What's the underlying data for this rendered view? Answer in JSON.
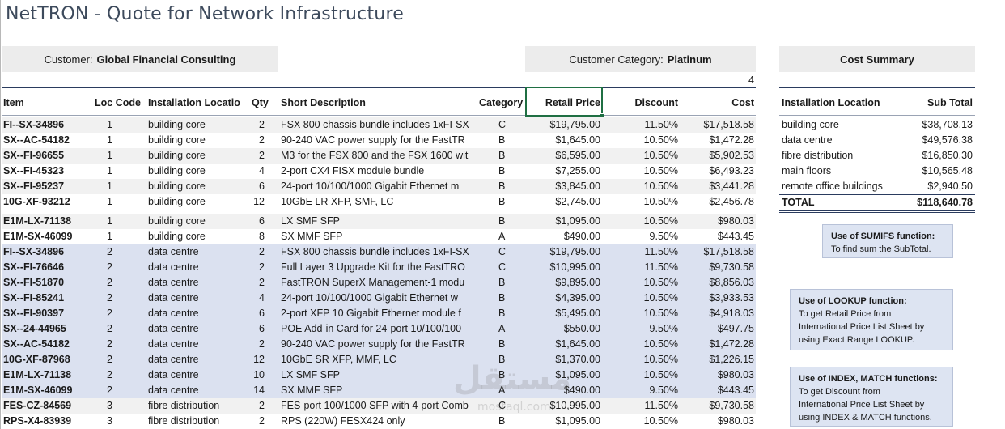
{
  "title": "NetTRON - Quote for Network Infrastructure",
  "customer_label": "Customer:",
  "customer_value": "Global Financial Consulting",
  "category_label": "Customer Category:",
  "category_value": "Platinum",
  "cost_summary_title": "Cost Summary",
  "category_index": "4",
  "headers": {
    "item": "Item",
    "loc": "Loc Code",
    "inst": "Installation Locatio",
    "qty": "Qty",
    "desc": "Short Description",
    "cat": "Category",
    "rp": "Retail Price",
    "disc": "Discount",
    "cost": "Cost"
  },
  "rows": [
    {
      "item": "FI--SX-34896",
      "loc": "1",
      "inst": "building core",
      "qty": "2",
      "desc": "FSX 800 chassis bundle includes 1xFI-SX",
      "cat": "C",
      "rp": "$19,795.00",
      "disc": "11.50%",
      "cost": "$17,518.58"
    },
    {
      "item": "SX--AC-54182",
      "loc": "1",
      "inst": "building core",
      "qty": "2",
      "desc": "90-240 VAC power supply for the FastTR",
      "cat": "B",
      "rp": "$1,645.00",
      "disc": "10.50%",
      "cost": "$1,472.28"
    },
    {
      "item": "SX--FI-96655",
      "loc": "1",
      "inst": "building core",
      "qty": "2",
      "desc": "M3 for the FSX 800 and the FSX 1600 wit",
      "cat": "B",
      "rp": "$6,595.00",
      "disc": "10.50%",
      "cost": "$5,902.53"
    },
    {
      "item": "SX--FI-45323",
      "loc": "1",
      "inst": "building core",
      "qty": "4",
      "desc": "2-port CX4 FISX module bundle",
      "cat": "B",
      "rp": "$7,255.00",
      "disc": "10.50%",
      "cost": "$6,493.23"
    },
    {
      "item": "SX--FI-95237",
      "loc": "1",
      "inst": "building core",
      "qty": "6",
      "desc": "24-port 10/100/1000 Gigabit Ethernet m",
      "cat": "B",
      "rp": "$3,845.00",
      "disc": "10.50%",
      "cost": "$3,441.28"
    },
    {
      "item": "10G-XF-93212",
      "loc": "1",
      "inst": "building core",
      "qty": "12",
      "desc": "10GbE LR XFP, SMF, LC",
      "cat": "B",
      "rp": "$2,745.00",
      "disc": "10.50%",
      "cost": "$2,456.78"
    },
    {
      "item": "E1M-LX-71138",
      "loc": "1",
      "inst": "building core",
      "qty": "6",
      "desc": "LX SMF SFP",
      "cat": "B",
      "rp": "$1,095.00",
      "disc": "10.50%",
      "cost": "$980.03"
    },
    {
      "item": "E1M-SX-46099",
      "loc": "1",
      "inst": "building core",
      "qty": "8",
      "desc": "SX MMF SFP",
      "cat": "A",
      "rp": "$490.00",
      "disc": "9.50%",
      "cost": "$443.45"
    },
    {
      "item": "FI--SX-34896",
      "loc": "2",
      "inst": "data centre",
      "qty": "2",
      "desc": "FSX 800 chassis bundle includes 1xFI-SX",
      "cat": "C",
      "rp": "$19,795.00",
      "disc": "11.50%",
      "cost": "$17,518.58"
    },
    {
      "item": "SX--FI-76646",
      "loc": "2",
      "inst": "data centre",
      "qty": "2",
      "desc": "Full Layer 3 Upgrade Kit for the FastTRO",
      "cat": "C",
      "rp": "$10,995.00",
      "disc": "11.50%",
      "cost": "$9,730.58"
    },
    {
      "item": "SX--FI-51870",
      "loc": "2",
      "inst": "data centre",
      "qty": "2",
      "desc": "FastTRON SuperX Management-1 modu",
      "cat": "B",
      "rp": "$9,895.00",
      "disc": "10.50%",
      "cost": "$8,856.03"
    },
    {
      "item": "SX--FI-85241",
      "loc": "2",
      "inst": "data centre",
      "qty": "4",
      "desc": "24-port 10/100/1000 Gigabit Ethernet w",
      "cat": "B",
      "rp": "$4,395.00",
      "disc": "10.50%",
      "cost": "$3,933.53"
    },
    {
      "item": "SX--FI-90397",
      "loc": "2",
      "inst": "data centre",
      "qty": "6",
      "desc": "2-port XFP 10 Gigabit Ethernet module f",
      "cat": "B",
      "rp": "$5,495.00",
      "disc": "10.50%",
      "cost": "$4,918.03"
    },
    {
      "item": "SX--24-44965",
      "loc": "2",
      "inst": "data centre",
      "qty": "6",
      "desc": "POE Add-in Card for 24-port 10/100/100",
      "cat": "A",
      "rp": "$550.00",
      "disc": "9.50%",
      "cost": "$497.75"
    },
    {
      "item": "SX--AC-54182",
      "loc": "2",
      "inst": "data centre",
      "qty": "2",
      "desc": "90-240 VAC power supply for the FastTR",
      "cat": "B",
      "rp": "$1,645.00",
      "disc": "10.50%",
      "cost": "$1,472.28"
    },
    {
      "item": "10G-XF-87968",
      "loc": "2",
      "inst": "data centre",
      "qty": "12",
      "desc": "10GbE SR XFP, MMF, LC",
      "cat": "B",
      "rp": "$1,370.00",
      "disc": "10.50%",
      "cost": "$1,226.15"
    },
    {
      "item": "E1M-LX-71138",
      "loc": "2",
      "inst": "data centre",
      "qty": "10",
      "desc": "LX SMF SFP",
      "cat": "B",
      "rp": "$1,095.00",
      "disc": "10.50%",
      "cost": "$980.03"
    },
    {
      "item": "E1M-SX-46099",
      "loc": "2",
      "inst": "data centre",
      "qty": "14",
      "desc": "SX MMF SFP",
      "cat": "A",
      "rp": "$490.00",
      "disc": "9.50%",
      "cost": "$443.45"
    },
    {
      "item": "FES-CZ-84569",
      "loc": "3",
      "inst": "fibre distribution",
      "qty": "2",
      "desc": "FES-port 100/1000 SFP with 4-port Comb",
      "cat": "C",
      "rp": "$10,995.00",
      "disc": "11.50%",
      "cost": "$9,730.58"
    },
    {
      "item": "RPS-X4-83939",
      "loc": "3",
      "inst": "fibre distribution",
      "qty": "2",
      "desc": "RPS (220W) FESX424 only",
      "cat": "B",
      "rp": "$1,095.00",
      "disc": "10.50%",
      "cost": "$980.03"
    }
  ],
  "summary": {
    "h_loc": "Installation Location",
    "h_sub": "Sub Total",
    "rows": [
      {
        "loc": "building core",
        "sub": "$38,708.13"
      },
      {
        "loc": "data centre",
        "sub": "$49,576.38"
      },
      {
        "loc": "fibre distribution",
        "sub": "$16,850.30"
      },
      {
        "loc": "main floors",
        "sub": "$10,565.48"
      },
      {
        "loc": "remote office buildings",
        "sub": "$2,940.50"
      }
    ],
    "total_label": "TOTAL",
    "total_value": "$118,640.78"
  },
  "notes": {
    "sumifs_title": "Use of SUMIFS function:",
    "sumifs_body": "To find sum the SubTotal.",
    "lookup_title": "Use of LOOKUP function:",
    "lookup_body_1": "To get Retail Price from",
    "lookup_body_2": "International Price List Sheet  by",
    "lookup_body_3": "using Exact Range LOOKUP.",
    "index_title": "Use of INDEX, MATCH functions:",
    "index_body_1": "To get Discount from",
    "index_body_2": "International Price List Sheet  by",
    "index_body_3": "using INDEX & MATCH functions."
  },
  "watermark": "مستقل",
  "watermark_sub": "mostaql.com",
  "colors": {
    "row_light": "#f1f1f1",
    "row_blue": "#dbe1f0",
    "header_line": "#2a3b5e",
    "note_bg": "#dde4f2"
  }
}
